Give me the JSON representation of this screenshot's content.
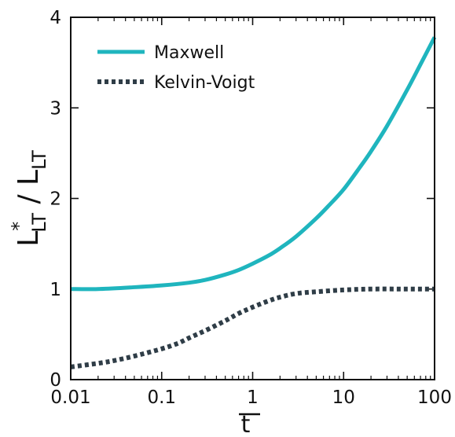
{
  "chart_data": {
    "type": "line",
    "xscale": "log",
    "xlim": [
      0.01,
      100
    ],
    "ylim": [
      0,
      4
    ],
    "xticks": [
      0.01,
      0.1,
      1,
      10,
      100
    ],
    "xtick_labels": [
      "0.01",
      "0.1",
      "1",
      "10",
      "100"
    ],
    "yticks": [
      0,
      1,
      2,
      3,
      4
    ],
    "ytick_labels": [
      "0",
      "1",
      "2",
      "3",
      "4"
    ],
    "xlabel": "t",
    "xlabel_overbar": true,
    "ylabel": {
      "main": "L",
      "sup": "*",
      "sub": "LT",
      "sep": " / ",
      "main2": "L",
      "sub2": "LT"
    },
    "legend_position": "top-left",
    "grid": false,
    "series": [
      {
        "name": "Maxwell",
        "color": "#1fb5be",
        "style": "solid",
        "x": [
          0.01,
          0.02,
          0.05,
          0.1,
          0.2,
          0.3,
          0.5,
          0.7,
          1,
          1.5,
          2,
          3,
          5,
          7,
          10,
          15,
          20,
          30,
          50,
          70,
          100
        ],
        "y": [
          1.0,
          1.0,
          1.02,
          1.04,
          1.07,
          1.1,
          1.16,
          1.21,
          1.28,
          1.37,
          1.45,
          1.58,
          1.78,
          1.93,
          2.1,
          2.34,
          2.52,
          2.8,
          3.2,
          3.48,
          3.78
        ]
      },
      {
        "name": "Kelvin-Voigt",
        "color": "#2f3d47",
        "style": "dotted",
        "x": [
          0.01,
          0.02,
          0.03,
          0.05,
          0.1,
          0.15,
          0.2,
          0.3,
          0.5,
          0.7,
          1,
          1.5,
          2,
          3,
          5,
          10,
          20,
          50,
          100
        ],
        "y": [
          0.14,
          0.18,
          0.21,
          0.26,
          0.34,
          0.4,
          0.46,
          0.54,
          0.65,
          0.73,
          0.8,
          0.87,
          0.91,
          0.95,
          0.97,
          0.99,
          1.0,
          1.0,
          1.0
        ]
      }
    ]
  }
}
